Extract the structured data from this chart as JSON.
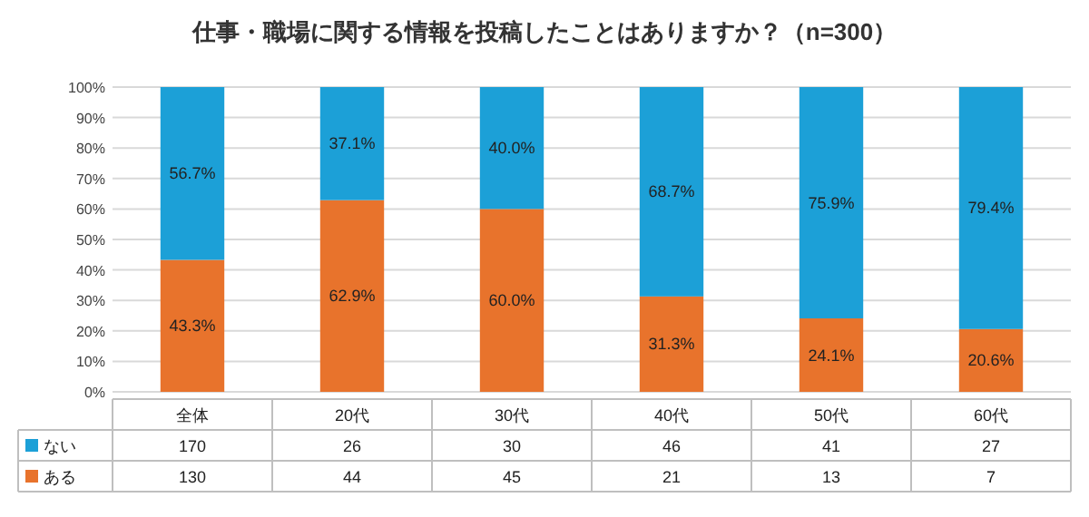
{
  "chart_data": {
    "type": "bar",
    "stacked": true,
    "title": "仕事・職場に関する情報を投稿したことはありますか？（n=300）",
    "categories": [
      "全体",
      "20代",
      "30代",
      "40代",
      "50代",
      "60代"
    ],
    "series": [
      {
        "name": "ある",
        "color": "#e8732c",
        "values": [
          43.3,
          62.9,
          60.0,
          31.3,
          24.1,
          20.6
        ],
        "value_labels": [
          "43.3%",
          "62.9%",
          "60.0%",
          "31.3%",
          "24.1%",
          "20.6%"
        ]
      },
      {
        "name": "ない",
        "color": "#1ca0d7",
        "values": [
          56.7,
          37.1,
          40.0,
          68.7,
          75.9,
          79.4
        ],
        "value_labels": [
          "56.7%",
          "37.1%",
          "40.0%",
          "68.7%",
          "75.9%",
          "79.4%"
        ]
      }
    ],
    "ylim": [
      0,
      100
    ],
    "yticks": [
      {
        "value": 0,
        "label": "0%"
      },
      {
        "value": 10,
        "label": "10%"
      },
      {
        "value": 20,
        "label": "20%"
      },
      {
        "value": 30,
        "label": "30%"
      },
      {
        "value": 40,
        "label": "40%"
      },
      {
        "value": 50,
        "label": "50%"
      },
      {
        "value": 60,
        "label": "60%"
      },
      {
        "value": 70,
        "label": "70%"
      },
      {
        "value": 80,
        "label": "80%"
      },
      {
        "value": 90,
        "label": "90%"
      },
      {
        "value": 100,
        "label": "100%"
      }
    ],
    "grid": "y",
    "legend": "bottom",
    "annotations": [
      "170",
      "26",
      "30",
      "46",
      "41",
      "27",
      "130",
      "44",
      "45",
      "21",
      "13",
      "7"
    ]
  }
}
